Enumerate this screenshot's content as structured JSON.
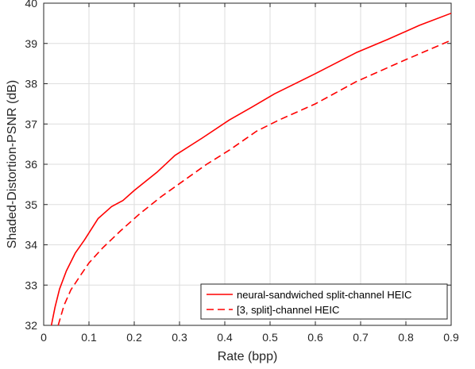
{
  "chart_data": {
    "type": "line",
    "title": "",
    "xlabel": "Rate (bpp)",
    "ylabel": "Shaded-Distortion-PSNR (dB)",
    "xlim": [
      0,
      0.9
    ],
    "ylim": [
      32,
      40
    ],
    "xticks": [
      "0",
      "0.1",
      "0.2",
      "0.3",
      "0.4",
      "0.5",
      "0.6",
      "0.7",
      "0.8",
      "0.9"
    ],
    "yticks": [
      "32",
      "33",
      "34",
      "35",
      "36",
      "37",
      "38",
      "39",
      "40"
    ],
    "grid": true,
    "legend_position": "bottom-right",
    "series": [
      {
        "name": "neural-sandwiched split-channel HEIC",
        "color": "#ff0000",
        "style": "solid",
        "x": [
          0.017,
          0.025,
          0.035,
          0.05,
          0.07,
          0.09,
          0.12,
          0.15,
          0.175,
          0.2,
          0.25,
          0.29,
          0.35,
          0.41,
          0.46,
          0.51,
          0.6,
          0.69,
          0.76,
          0.83,
          0.9
        ],
        "y": [
          32.0,
          32.45,
          32.9,
          33.35,
          33.8,
          34.12,
          34.65,
          34.95,
          35.1,
          35.35,
          35.8,
          36.22,
          36.65,
          37.1,
          37.42,
          37.75,
          38.25,
          38.77,
          39.1,
          39.45,
          39.75
        ]
      },
      {
        "name": "[3, split]-channel HEIC",
        "color": "#ff0000",
        "style": "dashed",
        "x": [
          0.032,
          0.045,
          0.06,
          0.08,
          0.1,
          0.13,
          0.17,
          0.21,
          0.26,
          0.31,
          0.36,
          0.41,
          0.47,
          0.52,
          0.6,
          0.69,
          0.79,
          0.9
        ],
        "y": [
          32.0,
          32.5,
          32.88,
          33.22,
          33.55,
          33.92,
          34.35,
          34.75,
          35.2,
          35.6,
          36.0,
          36.35,
          36.82,
          37.1,
          37.5,
          38.05,
          38.55,
          39.08
        ]
      }
    ]
  }
}
